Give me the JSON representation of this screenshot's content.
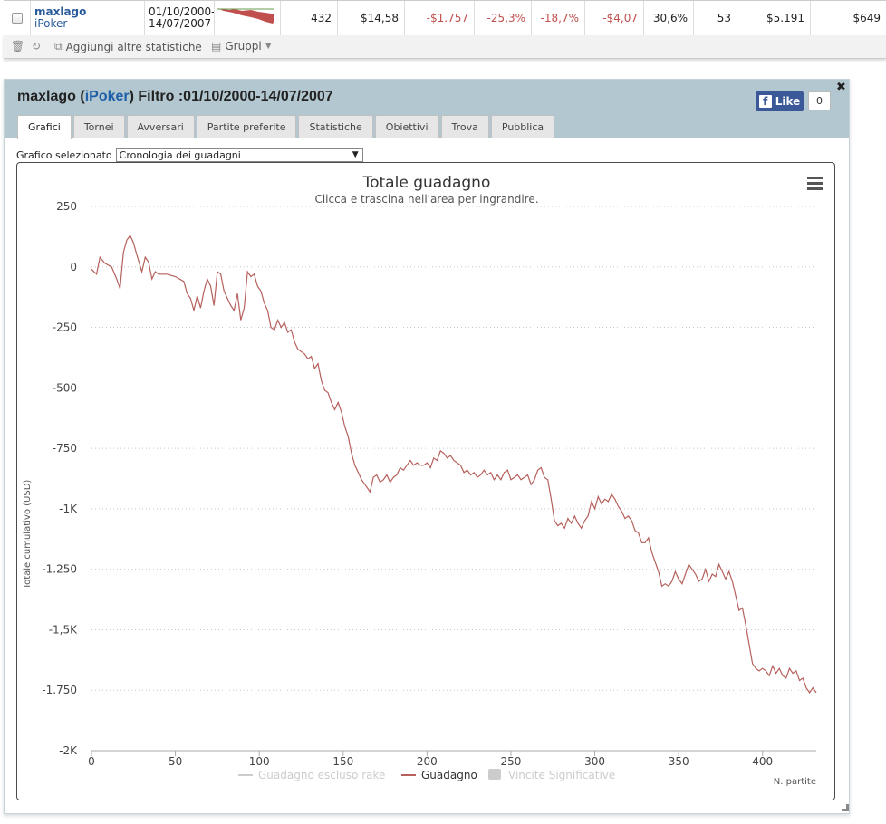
{
  "summary_row": {
    "player": "maxlago",
    "site": "iPoker",
    "date_range": "01/10/2000-14/07/2007",
    "hands": "432",
    "col_a": "$14,58",
    "col_b": "-$1.757",
    "col_c": "-25,3%",
    "col_d": "-18,7%",
    "col_e": "-$4,07",
    "col_f": "30,6%",
    "col_g": "53",
    "col_h": "$5.191",
    "col_i": "$649"
  },
  "toolbar": {
    "add_stats_label": "Aggiungi altre statistiche",
    "groups_label": "Gruppi"
  },
  "panel": {
    "title_name": "maxlago",
    "title_site": "iPoker",
    "title_filter": "Filtro :01/10/2000-14/07/2007",
    "like_label": "Like",
    "like_count": "0",
    "tabs": [
      {
        "label": "Grafici"
      },
      {
        "label": "Tornei"
      },
      {
        "label": "Avversari"
      },
      {
        "label": "Partite preferite"
      },
      {
        "label": "Statistiche"
      },
      {
        "label": "Obiettivi"
      },
      {
        "label": "Trova"
      },
      {
        "label": "Pubblica"
      }
    ],
    "select_label": "Grafico selezionato",
    "select_value": "Cronologia dei guadagni"
  },
  "chart_data": {
    "type": "line",
    "title": "Totale guadagno",
    "subtitle": "Clicca e trascina nell'area per ingrandire.",
    "xlabel": "N. partite",
    "ylabel": "Totale cumulativo (USD)",
    "xlim": [
      0,
      432
    ],
    "ylim": [
      -2000,
      250
    ],
    "x_ticks": [
      "0",
      "50",
      "100",
      "150",
      "200",
      "250",
      "300",
      "350",
      "400"
    ],
    "x_tick_values": [
      0,
      50,
      100,
      150,
      200,
      250,
      300,
      350,
      400
    ],
    "y_ticks": [
      "250",
      "0",
      "-250",
      "-500",
      "-750",
      "-1K",
      "-1.250",
      "-1,5K",
      "-1.750",
      "-2K"
    ],
    "y_tick_values": [
      250,
      0,
      -250,
      -500,
      -750,
      -1000,
      -1250,
      -1500,
      -1750,
      -2000
    ],
    "grid": true,
    "legend_position": "bottom",
    "legend": [
      {
        "name": "Guadagno escluso rake",
        "color": "#cccccc",
        "kind": "line",
        "enabled": false
      },
      {
        "name": "Guadagno",
        "color": "#b5605c",
        "kind": "line",
        "enabled": true
      },
      {
        "name": "Vincite Significative",
        "color": "#cccccc",
        "kind": "box",
        "enabled": false
      }
    ],
    "series": [
      {
        "name": "Guadagno",
        "color": "#b5605c",
        "points": [
          [
            0,
            -10
          ],
          [
            3,
            -30
          ],
          [
            5,
            40
          ],
          [
            8,
            15
          ],
          [
            12,
            0
          ],
          [
            15,
            -50
          ],
          [
            17,
            -90
          ],
          [
            19,
            60
          ],
          [
            21,
            110
          ],
          [
            23,
            130
          ],
          [
            25,
            100
          ],
          [
            27,
            50
          ],
          [
            30,
            -20
          ],
          [
            32,
            40
          ],
          [
            34,
            20
          ],
          [
            36,
            -50
          ],
          [
            38,
            -20
          ],
          [
            40,
            -30
          ],
          [
            45,
            -30
          ],
          [
            50,
            -40
          ],
          [
            55,
            -60
          ],
          [
            57,
            -110
          ],
          [
            59,
            -130
          ],
          [
            61,
            -180
          ],
          [
            63,
            -120
          ],
          [
            65,
            -170
          ],
          [
            67,
            -100
          ],
          [
            69,
            -50
          ],
          [
            71,
            -80
          ],
          [
            73,
            -160
          ],
          [
            75,
            -20
          ],
          [
            77,
            -30
          ],
          [
            79,
            -100
          ],
          [
            81,
            -130
          ],
          [
            83,
            -160
          ],
          [
            85,
            -180
          ],
          [
            87,
            -110
          ],
          [
            89,
            -220
          ],
          [
            91,
            -170
          ],
          [
            93,
            -20
          ],
          [
            95,
            -40
          ],
          [
            97,
            -30
          ],
          [
            99,
            -80
          ],
          [
            101,
            -100
          ],
          [
            103,
            -150
          ],
          [
            105,
            -180
          ],
          [
            107,
            -250
          ],
          [
            109,
            -260
          ],
          [
            111,
            -220
          ],
          [
            113,
            -250
          ],
          [
            115,
            -230
          ],
          [
            117,
            -270
          ],
          [
            119,
            -260
          ],
          [
            121,
            -310
          ],
          [
            123,
            -340
          ],
          [
            125,
            -350
          ],
          [
            127,
            -360
          ],
          [
            129,
            -380
          ],
          [
            131,
            -370
          ],
          [
            133,
            -420
          ],
          [
            135,
            -400
          ],
          [
            137,
            -470
          ],
          [
            139,
            -510
          ],
          [
            141,
            -520
          ],
          [
            143,
            -560
          ],
          [
            145,
            -590
          ],
          [
            147,
            -560
          ],
          [
            149,
            -600
          ],
          [
            151,
            -660
          ],
          [
            153,
            -700
          ],
          [
            155,
            -770
          ],
          [
            157,
            -820
          ],
          [
            159,
            -850
          ],
          [
            161,
            -880
          ],
          [
            163,
            -900
          ],
          [
            165,
            -920
          ],
          [
            166,
            -930
          ],
          [
            168,
            -870
          ],
          [
            170,
            -860
          ],
          [
            172,
            -890
          ],
          [
            174,
            -880
          ],
          [
            176,
            -860
          ],
          [
            178,
            -890
          ],
          [
            180,
            -870
          ],
          [
            182,
            -860
          ],
          [
            184,
            -830
          ],
          [
            186,
            -840
          ],
          [
            188,
            -820
          ],
          [
            190,
            -800
          ],
          [
            192,
            -820
          ],
          [
            194,
            -810
          ],
          [
            196,
            -820
          ],
          [
            198,
            -820
          ],
          [
            200,
            -810
          ],
          [
            202,
            -830
          ],
          [
            204,
            -790
          ],
          [
            206,
            -800
          ],
          [
            208,
            -760
          ],
          [
            210,
            -770
          ],
          [
            212,
            -790
          ],
          [
            214,
            -780
          ],
          [
            216,
            -800
          ],
          [
            218,
            -810
          ],
          [
            220,
            -820
          ],
          [
            222,
            -850
          ],
          [
            224,
            -840
          ],
          [
            226,
            -860
          ],
          [
            228,
            -850
          ],
          [
            230,
            -870
          ],
          [
            232,
            -860
          ],
          [
            234,
            -840
          ],
          [
            236,
            -860
          ],
          [
            238,
            -850
          ],
          [
            240,
            -880
          ],
          [
            242,
            -860
          ],
          [
            244,
            -880
          ],
          [
            246,
            -850
          ],
          [
            248,
            -840
          ],
          [
            250,
            -880
          ],
          [
            252,
            -870
          ],
          [
            254,
            -860
          ],
          [
            256,
            -880
          ],
          [
            258,
            -870
          ],
          [
            260,
            -860
          ],
          [
            262,
            -900
          ],
          [
            264,
            -880
          ],
          [
            266,
            -840
          ],
          [
            268,
            -830
          ],
          [
            270,
            -870
          ],
          [
            272,
            -880
          ],
          [
            274,
            -960
          ],
          [
            276,
            -1050
          ],
          [
            278,
            -1070
          ],
          [
            280,
            -1060
          ],
          [
            282,
            -1080
          ],
          [
            284,
            -1040
          ],
          [
            286,
            -1060
          ],
          [
            288,
            -1030
          ],
          [
            290,
            -1060
          ],
          [
            292,
            -1080
          ],
          [
            294,
            -1050
          ],
          [
            296,
            -1030
          ],
          [
            298,
            -970
          ],
          [
            300,
            -1000
          ],
          [
            302,
            -950
          ],
          [
            304,
            -980
          ],
          [
            306,
            -960
          ],
          [
            308,
            -970
          ],
          [
            310,
            -940
          ],
          [
            312,
            -960
          ],
          [
            314,
            -990
          ],
          [
            316,
            -1010
          ],
          [
            318,
            -1040
          ],
          [
            320,
            -1030
          ],
          [
            322,
            -1050
          ],
          [
            324,
            -1090
          ],
          [
            326,
            -1100
          ],
          [
            328,
            -1140
          ],
          [
            330,
            -1140
          ],
          [
            332,
            -1120
          ],
          [
            334,
            -1180
          ],
          [
            336,
            -1220
          ],
          [
            338,
            -1260
          ],
          [
            340,
            -1320
          ],
          [
            342,
            -1310
          ],
          [
            344,
            -1320
          ],
          [
            346,
            -1300
          ],
          [
            348,
            -1260
          ],
          [
            350,
            -1290
          ],
          [
            352,
            -1310
          ],
          [
            354,
            -1270
          ],
          [
            356,
            -1230
          ],
          [
            358,
            -1250
          ],
          [
            360,
            -1270
          ],
          [
            362,
            -1300
          ],
          [
            364,
            -1290
          ],
          [
            366,
            -1250
          ],
          [
            368,
            -1300
          ],
          [
            370,
            -1270
          ],
          [
            372,
            -1280
          ],
          [
            374,
            -1230
          ],
          [
            376,
            -1260
          ],
          [
            378,
            -1290
          ],
          [
            380,
            -1260
          ],
          [
            382,
            -1300
          ],
          [
            384,
            -1360
          ],
          [
            386,
            -1420
          ],
          [
            388,
            -1410
          ],
          [
            390,
            -1480
          ],
          [
            392,
            -1560
          ],
          [
            394,
            -1640
          ],
          [
            396,
            -1660
          ],
          [
            398,
            -1670
          ],
          [
            400,
            -1660
          ],
          [
            402,
            -1670
          ],
          [
            404,
            -1690
          ],
          [
            406,
            -1650
          ],
          [
            408,
            -1680
          ],
          [
            410,
            -1660
          ],
          [
            412,
            -1690
          ],
          [
            414,
            -1700
          ],
          [
            416,
            -1660
          ],
          [
            418,
            -1680
          ],
          [
            420,
            -1670
          ],
          [
            422,
            -1710
          ],
          [
            424,
            -1700
          ],
          [
            426,
            -1740
          ],
          [
            428,
            -1760
          ],
          [
            430,
            -1740
          ],
          [
            432,
            -1760
          ]
        ]
      }
    ]
  }
}
